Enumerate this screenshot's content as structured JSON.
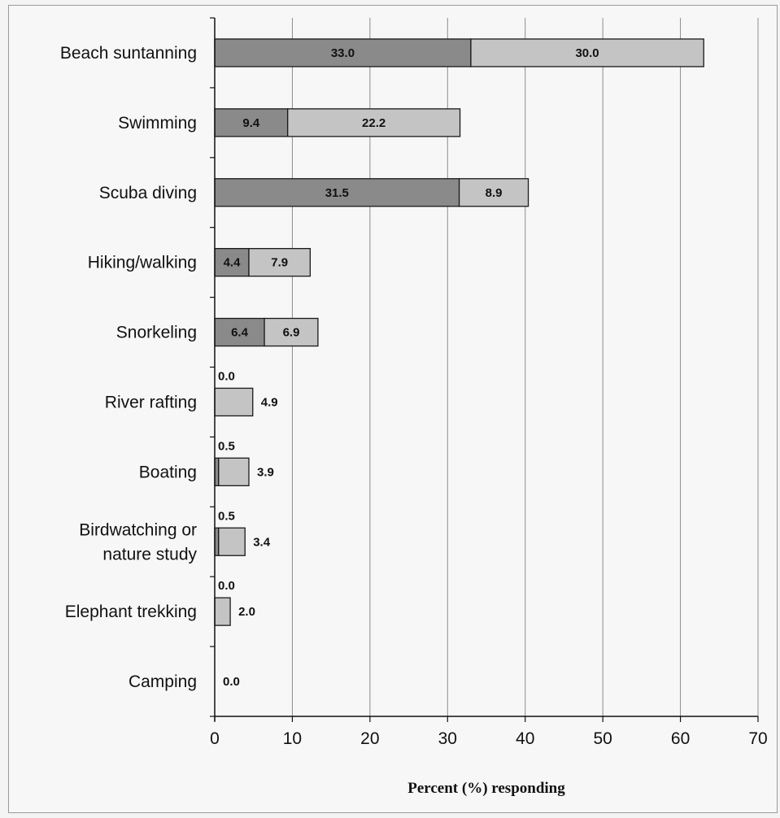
{
  "chart_data": {
    "type": "bar",
    "orientation": "horizontal",
    "stacked": true,
    "categories": [
      "Beach suntanning",
      "Swimming",
      "Scuba diving",
      "Hiking/walking",
      "Snorkeling",
      "River rafting",
      "Boating",
      "Birdwatching or nature study",
      "Elephant trekking",
      "Camping"
    ],
    "series": [
      {
        "values": [
          33.0,
          9.4,
          31.5,
          4.4,
          6.4,
          0.0,
          0.5,
          0.5,
          0.0,
          0.0
        ],
        "color": "#8a8a8a"
      },
      {
        "values": [
          30.0,
          22.2,
          8.9,
          7.9,
          6.9,
          4.9,
          3.9,
          3.4,
          2.0,
          0.0
        ],
        "color": "#c4c4c4"
      }
    ],
    "value_labels": [
      [
        "33.0",
        "9.4",
        "31.5",
        "4.4",
        "6.4",
        "0.0",
        "0.5",
        "0.5",
        "0.0",
        ""
      ],
      [
        "30.0",
        "22.2",
        "8.9",
        "7.9",
        "6.9",
        "4.9",
        "3.9",
        "3.4",
        "2.0",
        "0.0"
      ]
    ],
    "xlabel": "Percent (%) responding",
    "ylabel": "",
    "title": "",
    "xlim": [
      0,
      70
    ],
    "xticks": [
      0,
      10,
      20,
      30,
      40,
      50,
      60,
      70
    ],
    "xtick_labels": [
      "0",
      "10",
      "20",
      "30",
      "40",
      "50",
      "60",
      "70"
    ],
    "grid": "vertical",
    "legend": "none"
  }
}
